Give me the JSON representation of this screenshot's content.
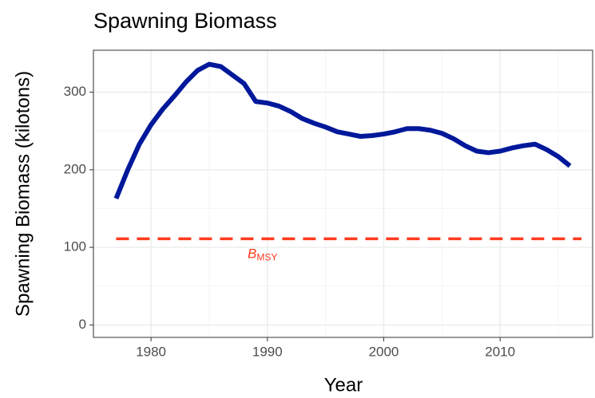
{
  "chart_data": {
    "type": "line",
    "title": "Spawning Biomass",
    "x_label": "Year",
    "y_label": "Spawning Biomass (kilotons)",
    "x": [
      1977,
      1978,
      1979,
      1980,
      1981,
      1982,
      1983,
      1984,
      1985,
      1986,
      1987,
      1988,
      1989,
      1990,
      1991,
      1992,
      1993,
      1994,
      1995,
      1996,
      1997,
      1998,
      1999,
      2000,
      2001,
      2002,
      2003,
      2004,
      2005,
      2006,
      2007,
      2008,
      2009,
      2010,
      2011,
      2012,
      2013,
      2014,
      2015,
      2016
    ],
    "series": [
      {
        "name": "Spawning Biomass",
        "color": "#00189a",
        "values": [
          163,
          200,
          233,
          258,
          278,
          295,
          313,
          328,
          336,
          333,
          322,
          311,
          288,
          286,
          282,
          275,
          266,
          260,
          255,
          249,
          246,
          243,
          244,
          246,
          249,
          253,
          253,
          251,
          247,
          240,
          231,
          224,
          222,
          224,
          228,
          231,
          233,
          226,
          217,
          205
        ]
      }
    ],
    "reference_line": {
      "value": 111,
      "x_range": [
        1977,
        2017
      ],
      "label": "B",
      "label_sub": "MSY",
      "color": "#ff3b1f"
    },
    "xlim": [
      1975.05,
      2017.95
    ],
    "ylim": [
      -16,
      354
    ],
    "xticks": [
      1980,
      1990,
      2000,
      2010
    ],
    "yticks": [
      0,
      100,
      200,
      300
    ],
    "x_minor_ticks": [
      1975,
      1985,
      1995,
      2005,
      2015
    ],
    "y_minor_ticks": [
      50,
      150,
      250,
      350
    ],
    "grid": true
  }
}
